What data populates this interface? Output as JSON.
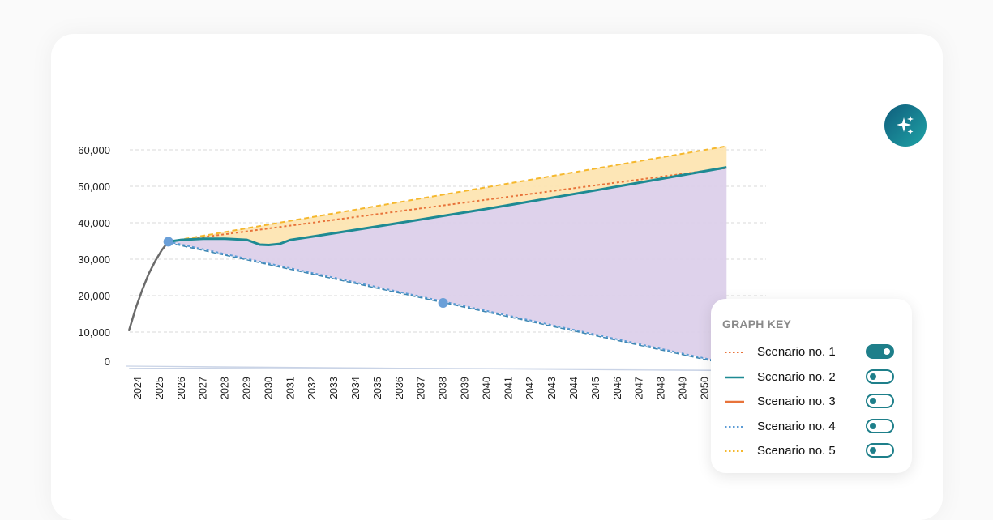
{
  "chart_data": {
    "type": "area",
    "x_ticks": [
      "2024",
      "2025",
      "2026",
      "2027",
      "2028",
      "2029",
      "2030",
      "2031",
      "2032",
      "2033",
      "2034",
      "2035",
      "2036",
      "2037",
      "2038",
      "2039",
      "2040",
      "2041",
      "2042",
      "2043",
      "2044",
      "2045",
      "2046",
      "2047",
      "2048",
      "2049",
      "2050"
    ],
    "y_ticks": [
      "0",
      "10,000",
      "20,000",
      "30,000",
      "40,000",
      "50,000",
      "60,000"
    ],
    "ylim": [
      0,
      60000
    ],
    "xlim": [
      2023.5,
      2051.5
    ],
    "grid": true,
    "history": {
      "x": [
        2023.6,
        2023.9,
        2024.2,
        2024.5,
        2024.8,
        2025.1,
        2025.4
      ],
      "y": [
        10500,
        16500,
        21500,
        26000,
        29500,
        32500,
        34800
      ]
    },
    "series": [
      {
        "name": "Scenario no. 1",
        "color": "#e8733a",
        "dash": "dot",
        "x": [
          2025.4,
          2051
        ],
        "y": [
          34800,
          55000
        ]
      },
      {
        "name": "Scenario no. 2",
        "color": "#1e8a93",
        "dash": "solid",
        "x": [
          2025.4,
          2026,
          2027,
          2028,
          2029,
          2029.6,
          2030,
          2030.5,
          2031,
          2032,
          2035,
          2040,
          2045,
          2051
        ],
        "y": [
          34800,
          35300,
          35600,
          35600,
          35300,
          34000,
          33900,
          34200,
          35300,
          36200,
          39000,
          43800,
          48900,
          55200
        ]
      },
      {
        "name": "Scenario no. 3",
        "color": "#e8733a",
        "dash": "solid",
        "x": [
          2025.4,
          2051
        ],
        "y": [
          34800,
          55500
        ]
      },
      {
        "name": "Scenario no. 4",
        "color": "#5b9bd5",
        "dash": "dot",
        "x": [
          2025.4,
          2051
        ],
        "y": [
          34800,
          1500
        ]
      },
      {
        "name": "Scenario no. 5",
        "color": "#f5b82e",
        "dash": "dash",
        "x": [
          2025.4,
          2051
        ],
        "y": [
          34800,
          61000
        ]
      }
    ],
    "markers": [
      {
        "x": 2025.4,
        "y": 34800
      },
      {
        "x": 2038,
        "y": 18000
      }
    ],
    "colors": {
      "upper_fill": "#fde5b2",
      "lower_fill": "#dcd0ea",
      "history": "#6b6b6b",
      "marker": "#6a9fd8",
      "grid": "#d9d9d9",
      "axis_text": "#222222"
    }
  },
  "legend": {
    "title": "GRAPH KEY",
    "items": [
      {
        "label": "Scenario no. 1",
        "color": "#e8733a",
        "style": "dotted",
        "enabled": true
      },
      {
        "label": "Scenario no. 2",
        "color": "#1e8a93",
        "style": "solid",
        "enabled": false
      },
      {
        "label": "Scenario no. 3",
        "color": "#e8733a",
        "style": "solid",
        "enabled": false
      },
      {
        "label": "Scenario no. 4",
        "color": "#5b9bd5",
        "style": "dotted",
        "enabled": false
      },
      {
        "label": "Scenario no. 5",
        "color": "#f5b82e",
        "style": "dotted",
        "enabled": false
      }
    ]
  },
  "ai_button": {
    "icon": "sparkles-icon"
  }
}
